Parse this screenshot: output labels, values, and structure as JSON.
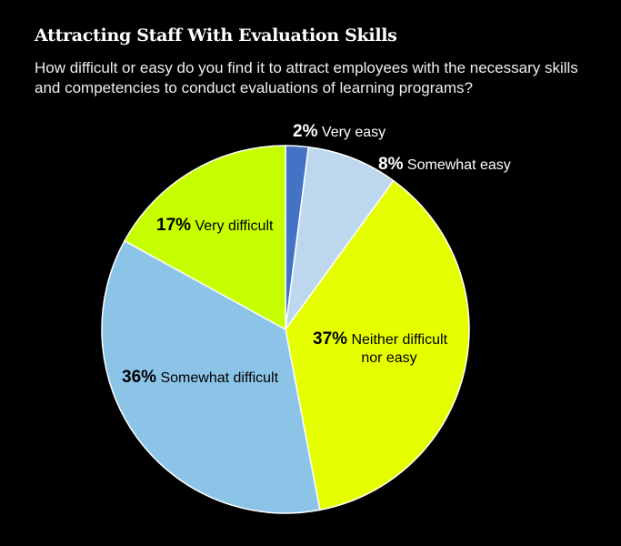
{
  "chart_data": {
    "type": "pie",
    "title": "Attracting Staff With Evaluation Skills",
    "subtitle": "How difficult or easy do you find it to attract employees with the necessary skills and competencies to conduct evaluations of learning programs?",
    "start": "top, clockwise",
    "slices": [
      {
        "label": "Very easy",
        "value": 2,
        "pct_label": "2%",
        "color": "#4472C4"
      },
      {
        "label": "Somewhat easy",
        "value": 8,
        "pct_label": "8%",
        "color": "#BDD7EE"
      },
      {
        "label": "Neither difficult nor easy",
        "label_lines": [
          "Neither difficult",
          "nor easy"
        ],
        "value": 37,
        "pct_label": "37%",
        "color": "#E6FF00"
      },
      {
        "label": "Somewhat difficult",
        "value": 36,
        "pct_label": "36%",
        "color": "#8CC4E8"
      },
      {
        "label": "Very difficult",
        "value": 17,
        "pct_label": "17%",
        "color": "#C6FF00"
      }
    ],
    "background": "#000000",
    "slice_border": "#FFFFFF"
  }
}
